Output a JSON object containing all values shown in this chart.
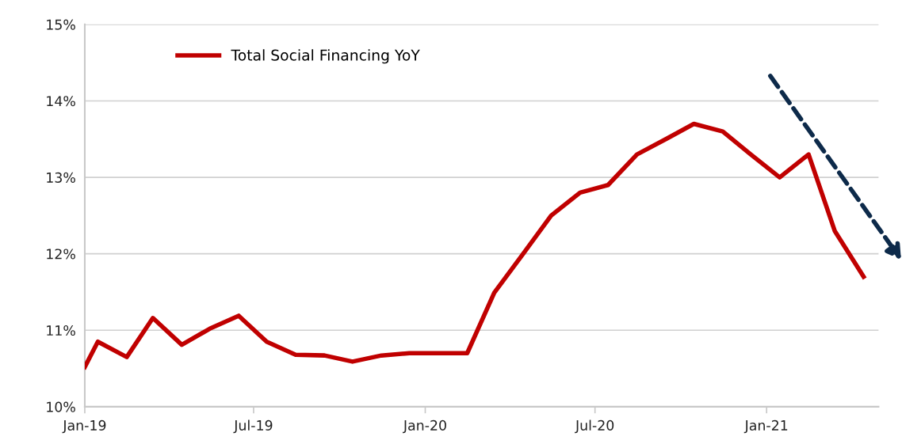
{
  "chart_data": {
    "type": "line",
    "x": [
      "2019-01-01",
      "2019-01-15",
      "2019-02-15",
      "2019-03-15",
      "2019-04-15",
      "2019-05-15",
      "2019-06-15",
      "2019-07-15",
      "2019-08-15",
      "2019-09-15",
      "2019-10-15",
      "2019-11-15",
      "2019-12-15",
      "2020-01-15",
      "2020-02-15",
      "2020-03-15",
      "2020-04-15",
      "2020-05-15",
      "2020-06-15",
      "2020-07-15",
      "2020-08-15",
      "2020-09-15",
      "2020-10-15",
      "2020-11-15",
      "2020-12-15",
      "2021-01-15",
      "2021-02-15",
      "2021-03-15",
      "2021-04-15"
    ],
    "series": [
      {
        "name": "Total Social Financing YoY",
        "color": "#c00000",
        "values": [
          10.52,
          10.85,
          10.65,
          11.16,
          10.81,
          11.02,
          11.19,
          10.85,
          10.68,
          10.67,
          10.59,
          10.67,
          10.7,
          10.7,
          10.7,
          11.49,
          12.0,
          12.5,
          12.8,
          12.9,
          13.3,
          13.5,
          13.7,
          13.6,
          13.3,
          13.0,
          13.3,
          12.3,
          11.7
        ]
      }
    ],
    "xlim": [
      "2019-01-01",
      "2021-05-01"
    ],
    "xticks": [
      {
        "value": "2019-01-01",
        "label": "Jan-19"
      },
      {
        "value": "2019-07-01",
        "label": "Jul-19"
      },
      {
        "value": "2020-01-01",
        "label": "Jan-20"
      },
      {
        "value": "2020-07-01",
        "label": "Jul-20"
      },
      {
        "value": "2021-01-01",
        "label": "Jan-21"
      }
    ],
    "ylim": [
      10,
      15
    ],
    "yticks": [
      {
        "value": 10,
        "label": "10%"
      },
      {
        "value": 11,
        "label": "11%"
      },
      {
        "value": 12,
        "label": "12%"
      },
      {
        "value": 13,
        "label": "13%"
      },
      {
        "value": 14,
        "label": "14%"
      },
      {
        "value": 15,
        "label": "15%"
      }
    ],
    "grid": "y",
    "legend": "top left",
    "line_style": "solid",
    "marker": "none"
  }
}
